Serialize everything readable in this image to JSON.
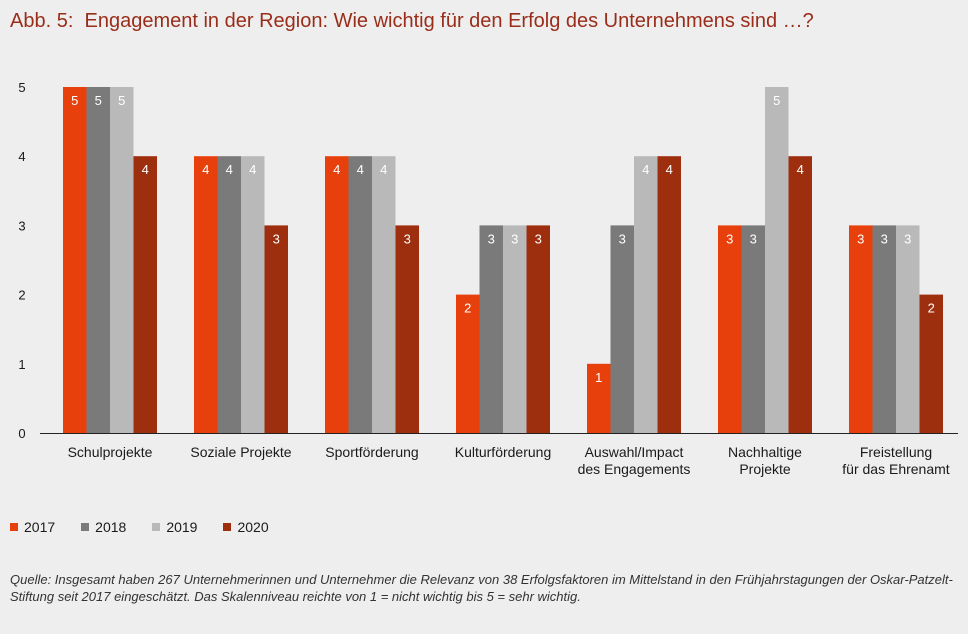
{
  "title": {
    "prefix": "Abb. 5:",
    "text": "Engagement in der Region: Wie wichtig für den Erfolg des Unternehmens sind …?"
  },
  "colors": {
    "2017": "#e8400c",
    "2018": "#7a7a7a",
    "2019": "#b9b9b9",
    "2020": "#9e2f0e"
  },
  "chart_data": {
    "type": "bar",
    "categories": [
      [
        "Schulprojekte"
      ],
      [
        "Soziale Projekte"
      ],
      [
        "Sportförderung"
      ],
      [
        "Kulturförderung"
      ],
      [
        "Auswahl/Impact",
        "des Engagements"
      ],
      [
        "Nachhaltige",
        "Projekte"
      ],
      [
        "Freistellung",
        "für das Ehrenamt"
      ]
    ],
    "series": [
      {
        "name": "2017",
        "values": [
          5,
          4,
          4,
          2,
          1,
          3,
          3
        ]
      },
      {
        "name": "2018",
        "values": [
          5,
          4,
          4,
          3,
          3,
          3,
          3
        ]
      },
      {
        "name": "2019",
        "values": [
          5,
          4,
          4,
          3,
          4,
          5,
          3
        ]
      },
      {
        "name": "2020",
        "values": [
          4,
          3,
          3,
          3,
          4,
          4,
          2
        ]
      }
    ],
    "y_ticks": [
      0,
      1,
      2,
      3,
      4,
      5
    ],
    "ylim": [
      0,
      5
    ],
    "grid": false,
    "legend_position": "bottom-left"
  },
  "legend": [
    {
      "label": "2017"
    },
    {
      "label": "2018"
    },
    {
      "label": "2019"
    },
    {
      "label": "2020"
    }
  ],
  "source": "Quelle: Insgesamt haben 267 Unternehmerinnen und Unternehmer die Relevanz von 38 Erfolgsfaktoren im Mittelstand in den Frühjahrstagungen der Oskar-Patzelt-Stiftung seit 2017 eingeschätzt. Das Skalenniveau reichte von 1 = nicht wichtig bis 5 = sehr wichtig."
}
